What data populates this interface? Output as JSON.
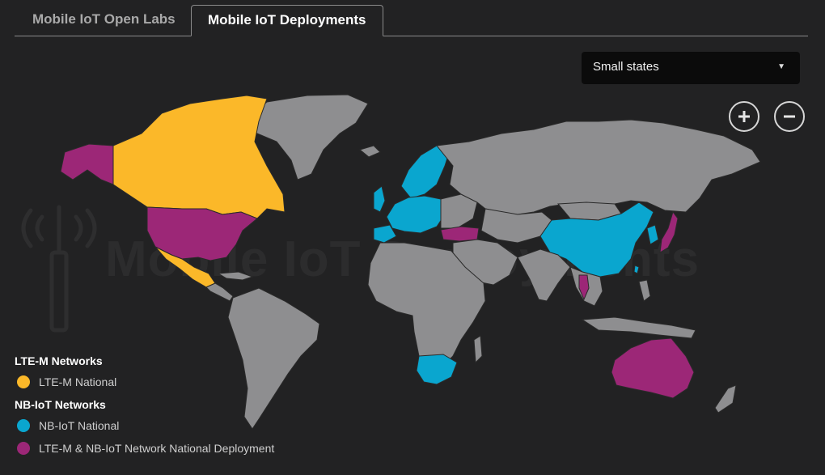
{
  "tabs": [
    {
      "label": "Mobile IoT Open Labs",
      "active": false
    },
    {
      "label": "Mobile IoT Deployments",
      "active": true
    }
  ],
  "region_select": {
    "value": "Small states"
  },
  "zoom": {
    "in_label": "+",
    "out_label": "−"
  },
  "watermark": "Mobile IoT Deployments",
  "legend": {
    "ltem_heading": "LTE-M Networks",
    "ltem_items": [
      {
        "label": "LTE-M National",
        "color": "#fbb829"
      }
    ],
    "nbiot_heading": "NB-IoT Networks",
    "nbiot_items": [
      {
        "label": "NB-IoT National",
        "color": "#0aa6cf"
      },
      {
        "label": "LTE-M & NB-IoT Network National Deployment",
        "color": "#9c2777"
      }
    ]
  },
  "colors": {
    "background": "#222223",
    "land": "#8e8e90",
    "ltem": "#fbb829",
    "nbiot": "#0aa6cf",
    "both": "#9c2777"
  }
}
